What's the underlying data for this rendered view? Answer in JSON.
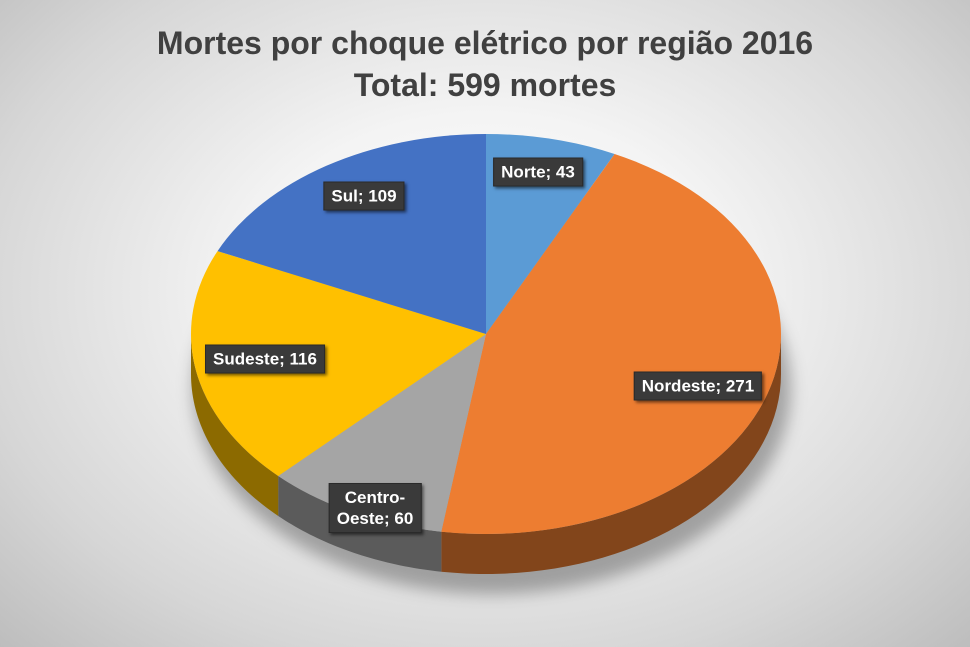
{
  "chart_data": {
    "type": "pie",
    "title": "Mortes por choque elétrico por região 2016",
    "subtitle": "Total: 599 mortes",
    "categories": [
      "Norte",
      "Nordeste",
      "Centro-Oeste",
      "Sudeste",
      "Sul"
    ],
    "values": [
      43,
      271,
      60,
      116,
      109
    ],
    "data_labels": [
      "Norte; 43",
      "Nordeste; 271",
      "Centro-\nOeste; 60",
      "Sudeste; 116",
      "Sul; 109"
    ],
    "colors": [
      "#5B9BD5",
      "#ED7D31",
      "#A5A5A5",
      "#FFC000",
      "#4472C4"
    ],
    "start_angle_deg": 0,
    "direction": "clockwise",
    "style": "3d-tilted",
    "legend": "none"
  }
}
